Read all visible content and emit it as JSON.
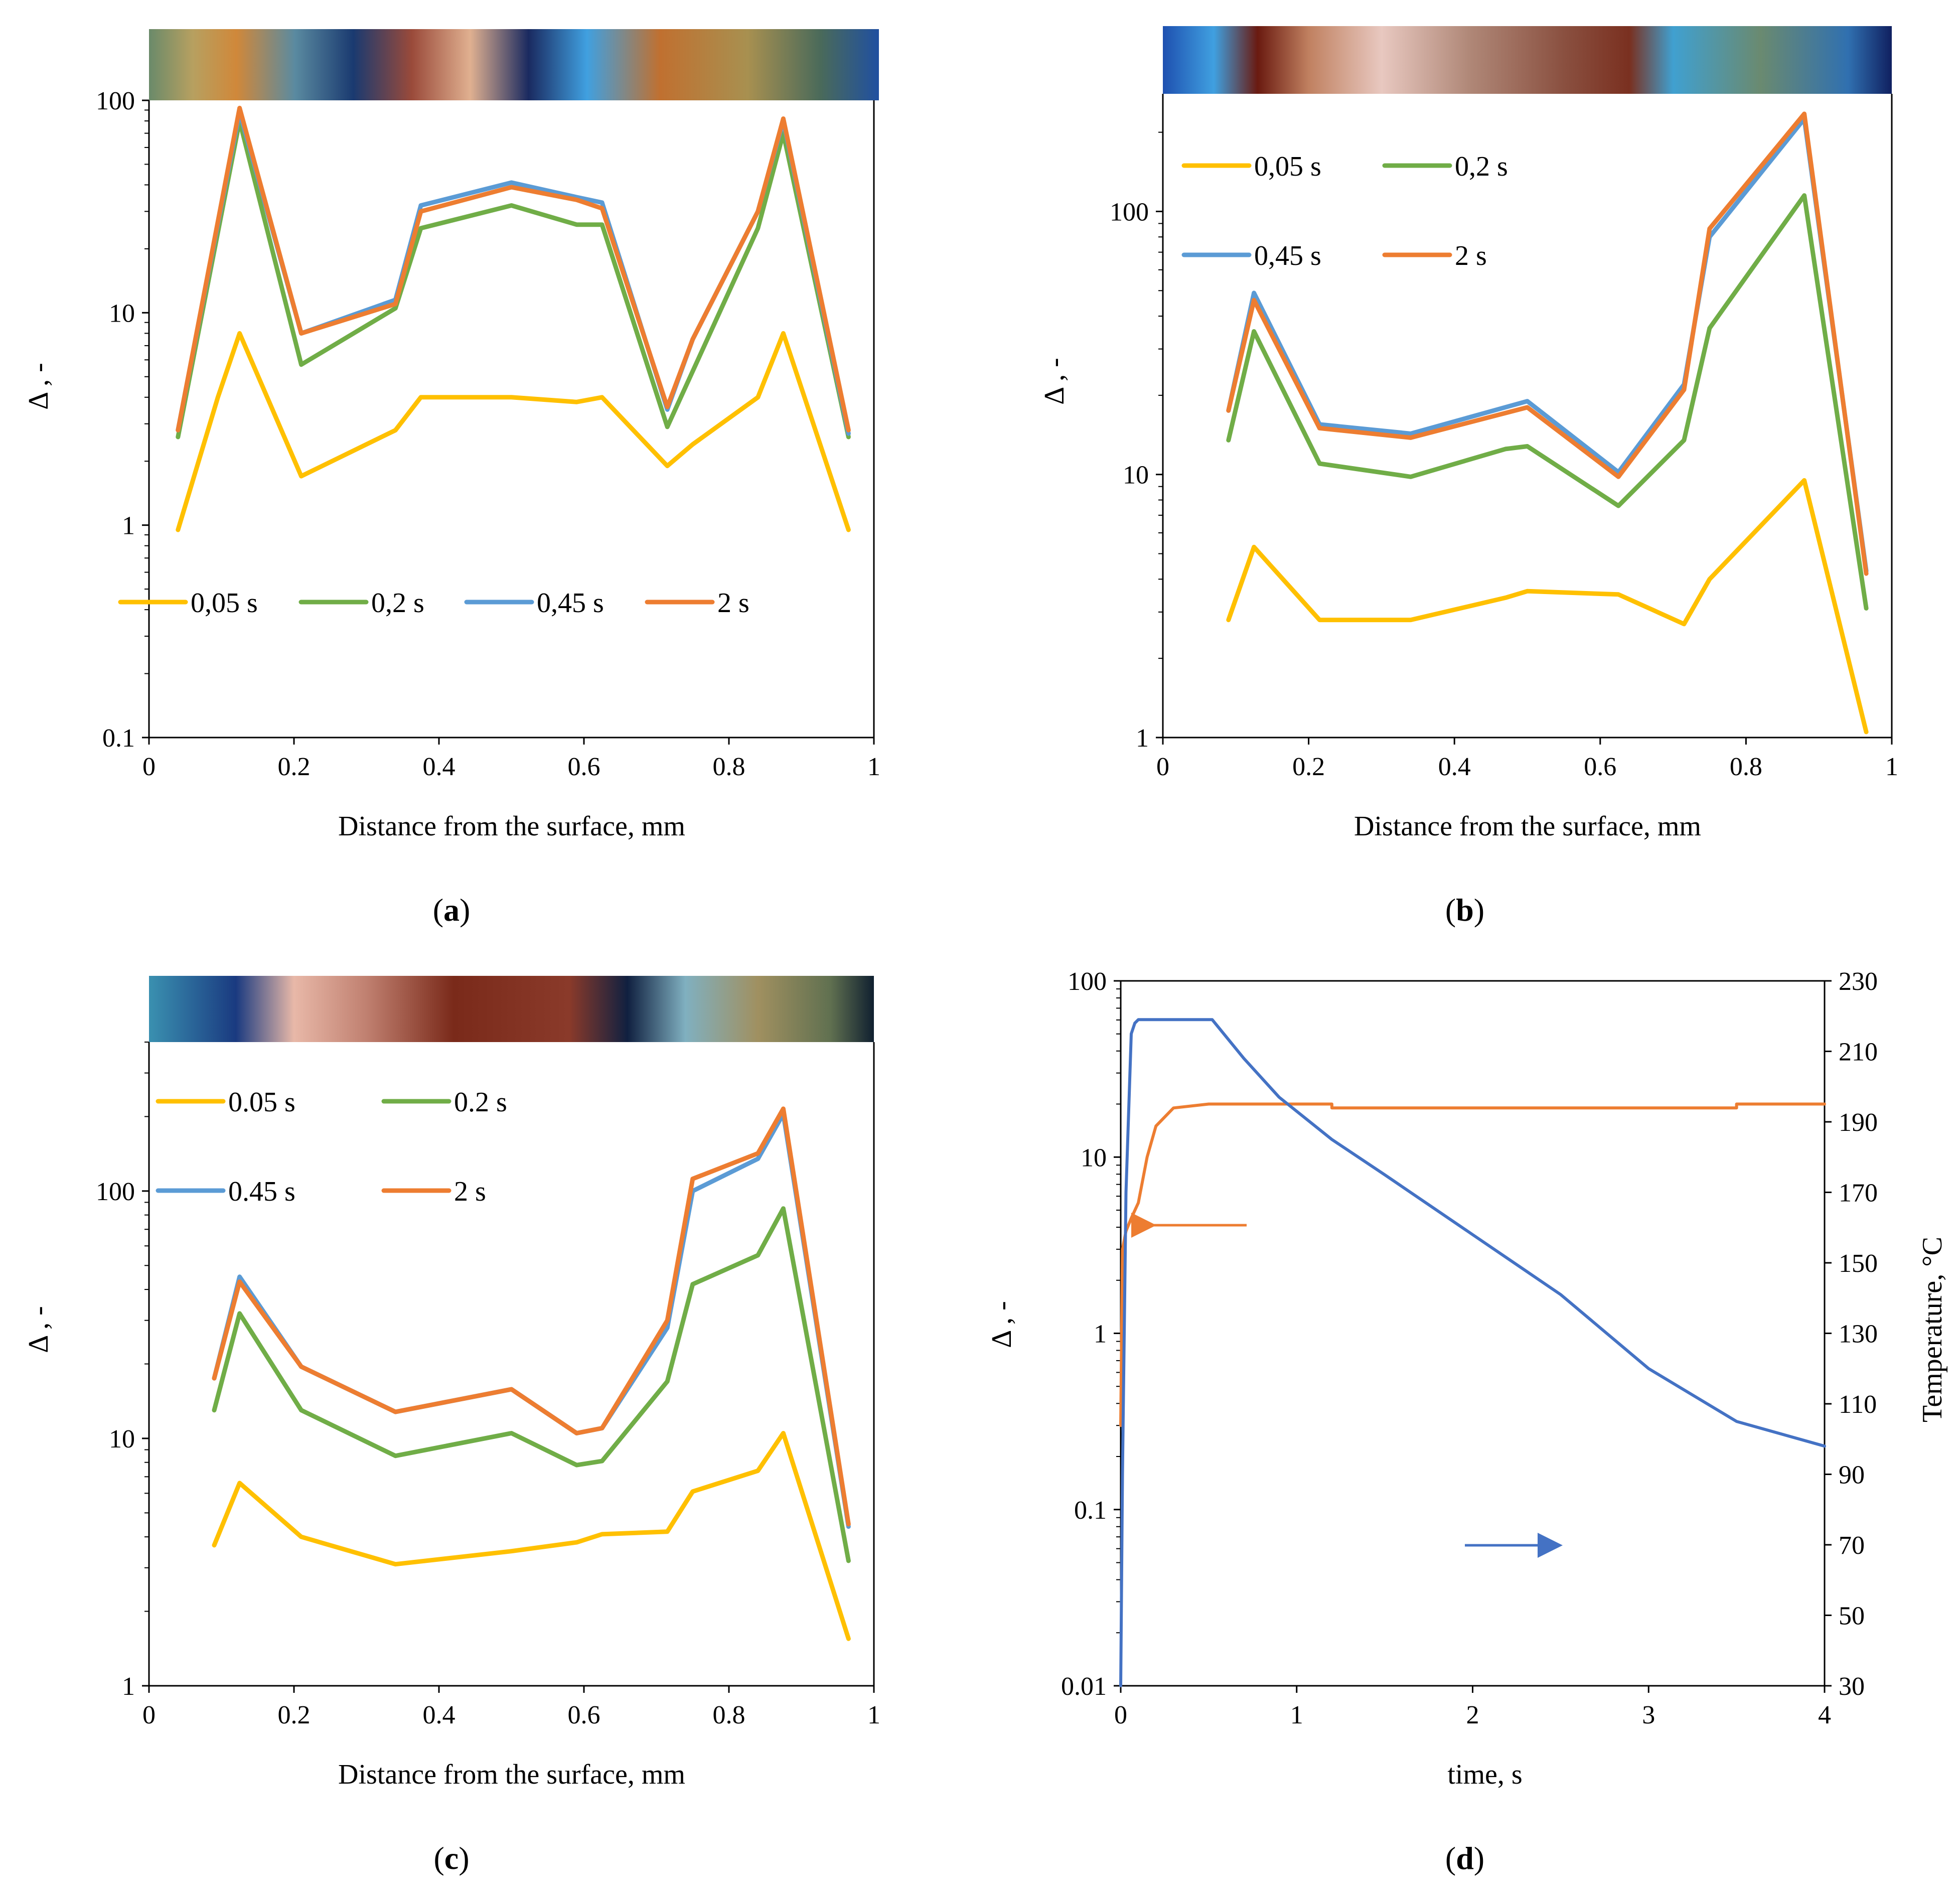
{
  "colors": {
    "s005": "#ffc000",
    "s02": "#70ad47",
    "s045": "#5b9bd5",
    "s2": "#ed7d31",
    "axis": "#000000",
    "temp": "#4472c4"
  },
  "chart_data": [
    {
      "id": "a",
      "type": "line",
      "panel_label": "a",
      "xlabel": "Distance from the surface, mm",
      "ylabel": "Δ , -",
      "xlim": [
        0,
        1
      ],
      "ylim": [
        0.1,
        100
      ],
      "yscale": "log",
      "xticks": [
        "0",
        "0.2",
        "0.4",
        "0.6",
        "0.8",
        "1"
      ],
      "yticks": [
        "0.1",
        "1",
        "10",
        "100"
      ],
      "legend": {
        "placement": "bottom-center-inside",
        "items": [
          "0,05 s",
          "0,2 s",
          "0,45 s",
          "2 s"
        ]
      },
      "micrograph_strip": true,
      "series": [
        {
          "name": "0,05 s",
          "color_key": "s005",
          "x": [
            0.04,
            0.095,
            0.125,
            0.21,
            0.34,
            0.375,
            0.5,
            0.59,
            0.625,
            0.715,
            0.75,
            0.84,
            0.875,
            0.965
          ],
          "y": [
            0.95,
            4.0,
            8.0,
            1.7,
            2.8,
            4.0,
            4.0,
            3.8,
            4.0,
            1.9,
            2.4,
            4.0,
            8.0,
            0.95
          ]
        },
        {
          "name": "0,2 s",
          "color_key": "s02",
          "x": [
            0.04,
            0.125,
            0.21,
            0.34,
            0.375,
            0.5,
            0.59,
            0.625,
            0.715,
            0.84,
            0.875,
            0.965
          ],
          "y": [
            2.6,
            80,
            5.7,
            10.5,
            25,
            32,
            26,
            26,
            2.9,
            25,
            70,
            2.6
          ]
        },
        {
          "name": "0,45 s",
          "color_key": "s045",
          "x": [
            0.04,
            0.125,
            0.21,
            0.34,
            0.375,
            0.5,
            0.59,
            0.625,
            0.715,
            0.75,
            0.84,
            0.875,
            0.965
          ],
          "y": [
            2.8,
            88,
            8.0,
            11.5,
            32,
            41,
            35,
            33,
            3.5,
            7.5,
            30,
            80,
            2.7
          ]
        },
        {
          "name": "2 s",
          "color_key": "s2",
          "x": [
            0.04,
            0.125,
            0.21,
            0.34,
            0.375,
            0.5,
            0.59,
            0.625,
            0.715,
            0.75,
            0.84,
            0.875,
            0.965
          ],
          "y": [
            2.8,
            92,
            8.0,
            11.0,
            30,
            39,
            34,
            31,
            3.6,
            7.5,
            30,
            82,
            2.8
          ]
        }
      ]
    },
    {
      "id": "b",
      "type": "line",
      "panel_label": "b",
      "xlabel": "Distance from the surface, mm",
      "ylabel": "Δ , -",
      "xlim": [
        0,
        1
      ],
      "ylim": [
        1,
        280
      ],
      "yscale": "log",
      "xticks": [
        "0",
        "0.2",
        "0.4",
        "0.6",
        "0.8",
        "1"
      ],
      "yticks": [
        "1",
        "10",
        "100"
      ],
      "legend": {
        "placement": "top-left-inside",
        "items": [
          "0,05 s",
          "0,2 s",
          "0,45 s",
          "2 s"
        ]
      },
      "micrograph_strip": true,
      "series": [
        {
          "name": "0,05 s",
          "color_key": "s005",
          "x": [
            0.09,
            0.125,
            0.215,
            0.34,
            0.47,
            0.5,
            0.625,
            0.715,
            0.75,
            0.88,
            0.965
          ],
          "y": [
            2.8,
            5.3,
            2.8,
            2.8,
            3.4,
            3.6,
            3.5,
            2.7,
            4.0,
            9.5,
            1.05
          ]
        },
        {
          "name": "0,2 s",
          "color_key": "s02",
          "x": [
            0.09,
            0.125,
            0.215,
            0.34,
            0.47,
            0.5,
            0.625,
            0.715,
            0.75,
            0.88,
            0.965
          ],
          "y": [
            13.5,
            35,
            11.0,
            9.8,
            12.5,
            12.8,
            7.6,
            13.5,
            36,
            115,
            3.1
          ]
        },
        {
          "name": "0,45 s",
          "color_key": "s045",
          "x": [
            0.09,
            0.125,
            0.215,
            0.34,
            0.5,
            0.625,
            0.715,
            0.75,
            0.88,
            0.965
          ],
          "y": [
            17.5,
            49,
            15.5,
            14.3,
            19.0,
            10.2,
            22,
            80,
            225,
            4.3
          ]
        },
        {
          "name": "2 s",
          "color_key": "s2",
          "x": [
            0.09,
            0.125,
            0.215,
            0.34,
            0.5,
            0.625,
            0.715,
            0.75,
            0.88,
            0.965
          ],
          "y": [
            17.5,
            46,
            15.0,
            13.8,
            18.0,
            9.8,
            21,
            86,
            235,
            4.2
          ]
        }
      ]
    },
    {
      "id": "c",
      "type": "line",
      "panel_label": "c",
      "xlabel": "Distance from the surface, mm",
      "ylabel": "Δ , -",
      "xlim": [
        0,
        1
      ],
      "ylim": [
        1,
        400
      ],
      "yscale": "log",
      "xticks": [
        "0",
        "0.2",
        "0.4",
        "0.6",
        "0.8",
        "1"
      ],
      "yticks": [
        "1",
        "10",
        "100"
      ],
      "legend": {
        "placement": "top-left-inside",
        "items": [
          "0.05 s",
          "0.2 s",
          "0.45 s",
          "2 s"
        ]
      },
      "micrograph_strip": true,
      "series": [
        {
          "name": "0.05 s",
          "color_key": "s005",
          "x": [
            0.09,
            0.125,
            0.21,
            0.34,
            0.5,
            0.59,
            0.625,
            0.715,
            0.75,
            0.84,
            0.875,
            0.965
          ],
          "y": [
            3.7,
            6.6,
            4.0,
            3.1,
            3.5,
            3.8,
            4.1,
            4.2,
            6.1,
            7.4,
            10.5,
            1.55
          ]
        },
        {
          "name": "0.2 s",
          "color_key": "s02",
          "x": [
            0.09,
            0.125,
            0.21,
            0.34,
            0.5,
            0.59,
            0.625,
            0.715,
            0.75,
            0.84,
            0.875,
            0.965
          ],
          "y": [
            13,
            32,
            13,
            8.5,
            10.5,
            7.8,
            8.1,
            17,
            42,
            55,
            85,
            3.2
          ]
        },
        {
          "name": "0.45 s",
          "color_key": "s045",
          "x": [
            0.09,
            0.125,
            0.21,
            0.34,
            0.5,
            0.59,
            0.625,
            0.715,
            0.75,
            0.84,
            0.875,
            0.965
          ],
          "y": [
            17.5,
            45,
            19.5,
            12.8,
            15.8,
            10.5,
            11,
            28,
            100,
            135,
            205,
            4.4
          ]
        },
        {
          "name": "2 s",
          "color_key": "s2",
          "x": [
            0.09,
            0.125,
            0.21,
            0.34,
            0.5,
            0.59,
            0.625,
            0.715,
            0.75,
            0.84,
            0.875,
            0.965
          ],
          "y": [
            17.5,
            43,
            19.5,
            12.8,
            15.8,
            10.5,
            11,
            30,
            112,
            142,
            215,
            4.5
          ]
        }
      ]
    },
    {
      "id": "d",
      "type": "line",
      "panel_label": "d",
      "xlabel": "time, s",
      "ylabel": "Δ , -",
      "y2label": "Temperature, °C",
      "xlim": [
        0,
        4
      ],
      "ylim": [
        0.01,
        100
      ],
      "yscale": "log",
      "y2lim": [
        30,
        230
      ],
      "xticks": [
        "0",
        "1",
        "2",
        "3",
        "4"
      ],
      "yticks": [
        "0.01",
        "0.1",
        "1",
        "10",
        "100"
      ],
      "y2ticks": [
        "30",
        "50",
        "70",
        "90",
        "110",
        "130",
        "150",
        "170",
        "190",
        "210",
        "230"
      ],
      "annotations": [
        "arrow pointing left toward Δ axis (orange)",
        "arrow pointing right toward temperature axis (blue)"
      ],
      "series": [
        {
          "name": "Δ",
          "axis": "left",
          "color_key": "s2",
          "x": [
            0,
            0.01,
            0.03,
            0.06,
            0.1,
            0.15,
            0.2,
            0.3,
            0.5,
            1.2,
            1.2,
            3.5,
            3.5,
            4.0
          ],
          "y": [
            0.3,
            3.0,
            3.8,
            4.5,
            5.5,
            10,
            15,
            19,
            20,
            20,
            19,
            19,
            20,
            20
          ]
        },
        {
          "name": "Temperature",
          "axis": "right",
          "color_key": "temp",
          "x": [
            0,
            0.01,
            0.03,
            0.06,
            0.08,
            0.1,
            0.3,
            0.52,
            0.7,
            0.9,
            1.2,
            1.5,
            2.0,
            2.5,
            3.0,
            3.5,
            4.0
          ],
          "y": [
            30,
            90,
            170,
            215,
            218,
            219,
            219,
            219,
            208,
            197,
            185,
            175,
            158,
            141,
            120,
            105,
            98
          ]
        }
      ]
    }
  ]
}
